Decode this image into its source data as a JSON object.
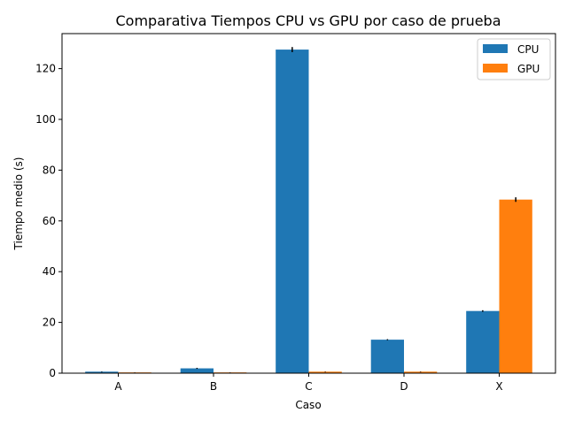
{
  "chart_data": {
    "type": "bar",
    "title": "Comparativa Tiempos CPU vs GPU por caso de prueba",
    "xlabel": "Caso",
    "ylabel": "Tiempo medio (s)",
    "categories": [
      "A",
      "B",
      "C",
      "D",
      "X"
    ],
    "ylim": [
      0,
      133.8
    ],
    "yticks": [
      0,
      20,
      40,
      60,
      80,
      100,
      120
    ],
    "grid": false,
    "legend_position": "top-right",
    "series": [
      {
        "name": "CPU",
        "color": "#1f77b4",
        "values": [
          0.6,
          1.9,
          127.5,
          13.2,
          24.5
        ],
        "errors": [
          0.1,
          0.2,
          1.0,
          0.2,
          0.3
        ]
      },
      {
        "name": "GPU",
        "color": "#ff7f0e",
        "values": [
          0.3,
          0.3,
          0.6,
          0.6,
          68.4
        ],
        "errors": [
          0.05,
          0.05,
          0.1,
          0.1,
          0.9
        ]
      }
    ]
  }
}
